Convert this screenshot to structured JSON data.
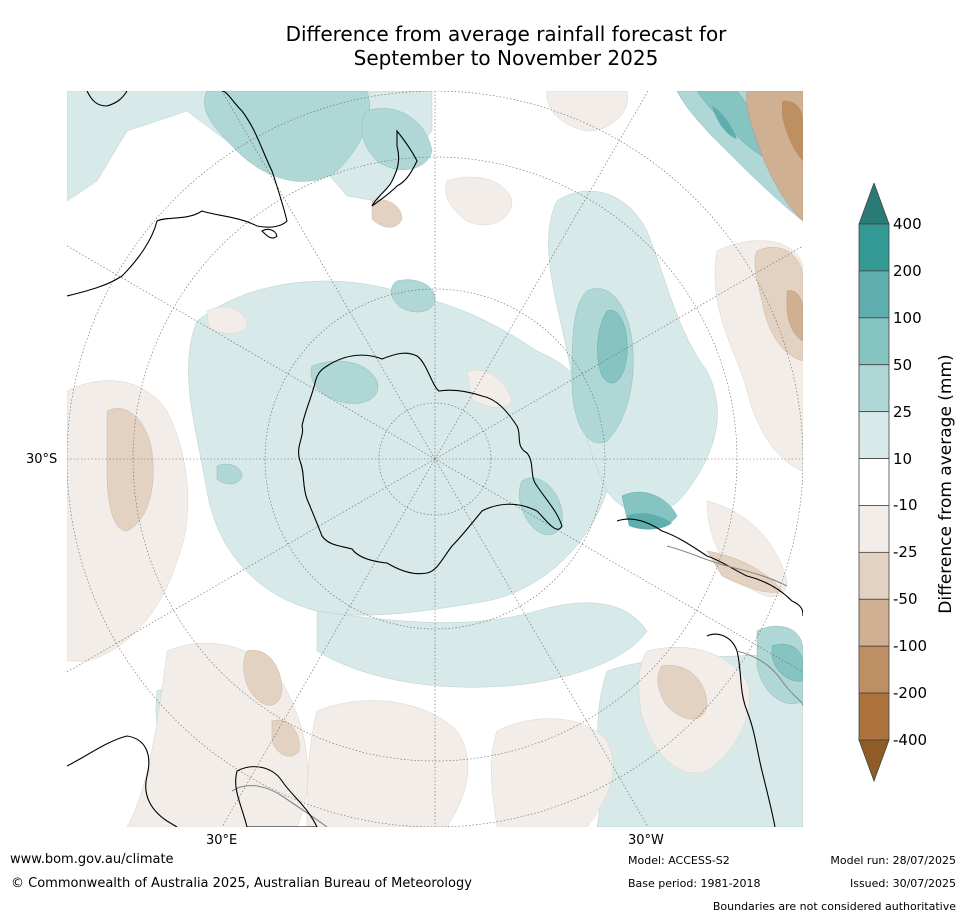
{
  "title": {
    "line1": "Difference from average rainfall forecast for",
    "line2": "September to November 2025"
  },
  "map": {
    "projection": "south polar stereographic",
    "lat_label": "30°S",
    "lon_labels": {
      "east": "30°E",
      "west": "30°W"
    },
    "land_outline_color": "#000000",
    "border_color": "#888888",
    "graticule_color": "#666666"
  },
  "legend": {
    "title": "Difference from average (mm)",
    "extend_top_color": "#2a7b78",
    "extend_bottom_color": "#8f5c26",
    "bins": [
      {
        "label_top": "400",
        "color": "#339995"
      },
      {
        "label_top": "200",
        "color": "#5daeac"
      },
      {
        "label_top": "100",
        "color": "#86c4c2"
      },
      {
        "label_top": "50",
        "color": "#aed7d6"
      },
      {
        "label_top": "25",
        "color": "#d7e9e8"
      },
      {
        "label_top": "10",
        "color": "#ffffff"
      },
      {
        "label_top": "-10",
        "color": "#f2ede8"
      },
      {
        "label_top": "-25",
        "color": "#e3d2c2"
      },
      {
        "label_top": "-50",
        "color": "#cfb093"
      },
      {
        "label_top": "-100",
        "color": "#be8f62"
      },
      {
        "label_top": "-200",
        "color": "#ac743c"
      }
    ],
    "bottom_label": "-400"
  },
  "footer": {
    "url": "www.bom.gov.au/climate",
    "copyright": "© Commonwealth of Australia 2025, Australian Bureau of Meteorology",
    "model": "Model: ACCESS-S2",
    "base_period": "Base period: 1981-2018",
    "model_run": "Model run: 28/07/2025",
    "issued": "Issued: 30/07/2025",
    "disclaimer": "Boundaries are not considered authoritative"
  }
}
